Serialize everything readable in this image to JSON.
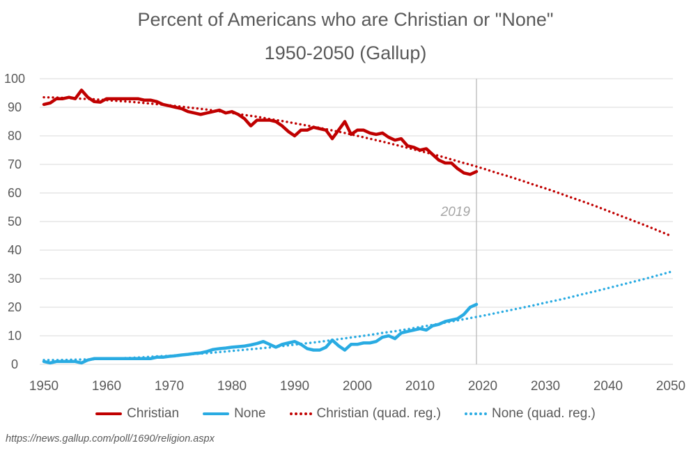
{
  "title": {
    "line1": "Percent of Americans who are Christian or \"None\"",
    "line2": "1950-2050 (Gallup)"
  },
  "source_url": "https://news.gallup.com/poll/1690/religion.aspx",
  "colors": {
    "christian": "#C00000",
    "none": "#29ABE2",
    "grid": "#D9D9D9",
    "axis_text": "#595959",
    "title_text": "#595959",
    "vline": "#BFBFBF",
    "annotation_text": "#A6A6A6"
  },
  "legend": [
    {
      "id": "christian",
      "label": "Christian",
      "style": "solid",
      "color": "#C00000"
    },
    {
      "id": "none",
      "label": "None",
      "style": "solid",
      "color": "#29ABE2"
    },
    {
      "id": "christian-reg",
      "label": "Christian (quad. reg.)",
      "style": "dotted",
      "color": "#C00000"
    },
    {
      "id": "none-reg",
      "label": "None (quad. reg.)",
      "style": "dotted",
      "color": "#29ABE2"
    }
  ],
  "chart_data": {
    "type": "line",
    "title": "Percent of Americans who are Christian or \"None\" 1950-2050 (Gallup)",
    "xlabel": "",
    "ylabel": "",
    "xlim": [
      1950,
      2050
    ],
    "ylim": [
      0,
      100
    ],
    "x_ticks": [
      1950,
      1960,
      1970,
      1980,
      1990,
      2000,
      2010,
      2020,
      2030,
      2040,
      2050
    ],
    "y_ticks": [
      0,
      10,
      20,
      30,
      40,
      50,
      60,
      70,
      80,
      90,
      100
    ],
    "grid": "horizontal",
    "legend_position": "bottom",
    "annotation": {
      "vline_year": 2019,
      "label": "2019"
    },
    "series": [
      {
        "name": "Christian",
        "style": "solid",
        "color": "#C00000",
        "width": 4.5,
        "x_start": 1950,
        "x_step": 1,
        "values": [
          91,
          91.5,
          93,
          93,
          93.5,
          93,
          96,
          93.5,
          92,
          91.8,
          93,
          93,
          93,
          93,
          93,
          93,
          92.5,
          92.5,
          92,
          91,
          90.5,
          90,
          89.5,
          88.5,
          88,
          87.5,
          88,
          88.5,
          89,
          88,
          88.5,
          87.5,
          86,
          83.5,
          85.5,
          85.5,
          85.5,
          85,
          83.5,
          81.5,
          80,
          82,
          82,
          83,
          82.5,
          82,
          79,
          82,
          85,
          80.5,
          82,
          82,
          81,
          80.5,
          81,
          79.5,
          78.5,
          79,
          76.5,
          76,
          75,
          75.5,
          73.5,
          71.5,
          70.5,
          70.5,
          68.5,
          67,
          66.5,
          67.5
        ]
      },
      {
        "name": "None",
        "style": "solid",
        "color": "#29ABE2",
        "width": 4.5,
        "x_start": 1950,
        "x_step": 1,
        "values": [
          1,
          0.5,
          1,
          1,
          1,
          1,
          0.5,
          1.5,
          2,
          2,
          2,
          2,
          2,
          2,
          2,
          2,
          2,
          2,
          2.5,
          2.5,
          2.8,
          3,
          3.3,
          3.5,
          3.8,
          4,
          4.5,
          5.2,
          5.5,
          5.7,
          6,
          6.2,
          6.4,
          6.8,
          7.3,
          8,
          7,
          6,
          7,
          7.5,
          8,
          7,
          5.5,
          5,
          5,
          6,
          8.5,
          6.5,
          5,
          7,
          7,
          7.5,
          7.5,
          8,
          9.5,
          10,
          9,
          11,
          11.5,
          12,
          12.5,
          12,
          13.5,
          14,
          15,
          15.5,
          16,
          17.5,
          20,
          21
        ]
      },
      {
        "name": "Christian (quad. reg.)",
        "style": "dotted",
        "color": "#C00000",
        "width": 3.4,
        "x_start": 1950,
        "x_step": 2,
        "values": [
          93.5,
          93.4,
          93.2,
          93.0,
          92.8,
          92.5,
          92.2,
          91.9,
          91.5,
          91.1,
          90.7,
          90.2,
          89.7,
          89.2,
          88.6,
          88.0,
          87.3,
          86.7,
          85.9,
          85.2,
          84.4,
          83.6,
          82.8,
          81.9,
          81.0,
          80.0,
          79.0,
          78.0,
          76.9,
          75.8,
          74.7,
          73.6,
          72.4,
          71.1,
          69.9,
          68.6,
          67.2,
          65.9,
          64.5,
          63.0,
          61.6,
          60.1,
          58.5,
          57.0,
          55.4,
          53.7,
          52.0,
          50.3,
          48.6,
          46.8,
          45.0
        ]
      },
      {
        "name": "None (quad. reg.)",
        "style": "dotted",
        "color": "#29ABE2",
        "width": 3.4,
        "x_start": 1950,
        "x_step": 2,
        "values": [
          1.5,
          1.5,
          1.6,
          1.7,
          1.8,
          2.0,
          2.1,
          2.3,
          2.5,
          2.8,
          3.0,
          3.3,
          3.6,
          3.9,
          4.3,
          4.7,
          5.1,
          5.5,
          5.9,
          6.4,
          6.9,
          7.4,
          7.9,
          8.5,
          9.1,
          9.7,
          10.3,
          11.0,
          11.6,
          12.3,
          13.1,
          13.8,
          14.6,
          15.4,
          16.2,
          17.0,
          17.9,
          18.8,
          19.7,
          20.6,
          21.6,
          22.5,
          23.5,
          24.6,
          25.6,
          26.7,
          27.8,
          28.9,
          30.0,
          31.2,
          32.4
        ]
      }
    ]
  }
}
